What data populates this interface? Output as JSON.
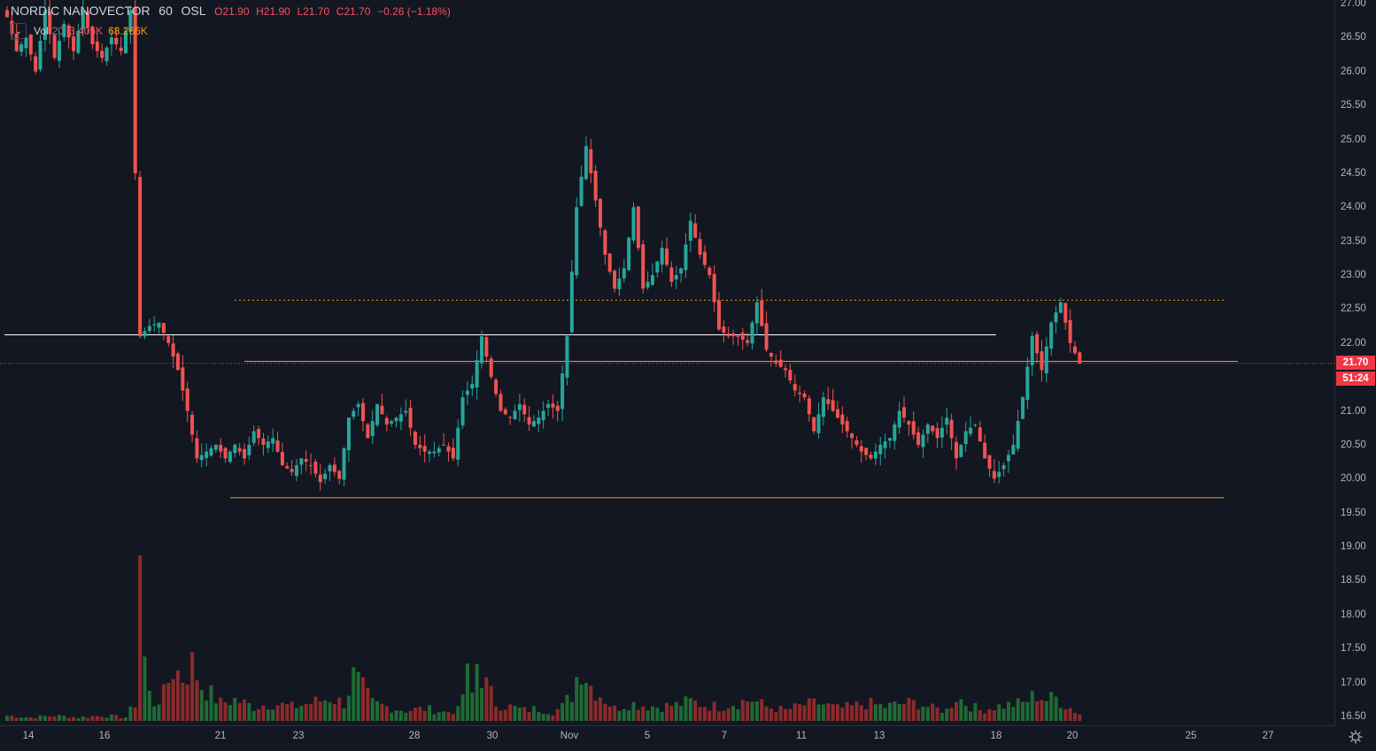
{
  "header": {
    "symbol": "NORDIC NANOVECTOR",
    "interval": "60",
    "exchange": "OSL",
    "open": "O21.90",
    "high": "H21.90",
    "low": "L21.70",
    "close": "C21.70",
    "change": "−0.26 (−1.18%)"
  },
  "volume_legend": {
    "label": "Vol",
    "length": "20",
    "value": "3.405K",
    "ma_value": "68.266K",
    "collapse_icon": "chevron-down-icon"
  },
  "price_tags": {
    "last_price": "21.70",
    "countdown": "51:24"
  },
  "colors": {
    "background": "#131722",
    "up": "#26a69a",
    "down": "#ef5350",
    "volume_up": "#1f6b34",
    "volume_down": "#8c2a2a",
    "orange_line": "#ff9800",
    "white_line": "#ffffff",
    "price_tag": "#f23645"
  },
  "chart_data": {
    "type": "candlestick",
    "price_axis_ticks": [
      "16.50",
      "17.00",
      "17.50",
      "18.00",
      "18.50",
      "19.00",
      "19.50",
      "20.00",
      "20.50",
      "21.00",
      "21.50",
      "22.00",
      "22.50",
      "23.00",
      "23.50",
      "24.00",
      "24.50",
      "25.00",
      "25.50",
      "26.00",
      "26.50",
      "27.00"
    ],
    "time_axis_ticks": [
      "14",
      "16",
      "21",
      "23",
      "28",
      "30",
      "Nov",
      "5",
      "7",
      "11",
      "13",
      "18",
      "20",
      "25",
      "27"
    ],
    "horizontal_lines": [
      {
        "price": 22.12,
        "color": "white",
        "style": "solid"
      },
      {
        "price": 22.63,
        "color": "orange",
        "style": "dotted"
      },
      {
        "price": 21.73,
        "color": "orange",
        "style": "solid"
      },
      {
        "price": 19.72,
        "color": "orange",
        "style": "solid"
      },
      {
        "price": 21.7,
        "color": "red",
        "style": "dotted"
      }
    ],
    "close_path": [
      [
        26.8,
        0
      ],
      [
        26.3,
        2
      ],
      [
        26.5,
        4
      ],
      [
        26.0,
        6
      ],
      [
        26.9,
        8
      ],
      [
        26.2,
        10
      ],
      [
        26.7,
        12
      ],
      [
        26.3,
        14
      ],
      [
        26.9,
        16
      ],
      [
        26.4,
        18
      ],
      [
        26.2,
        20
      ],
      [
        26.5,
        22
      ],
      [
        26.3,
        24
      ],
      [
        26.9,
        26
      ],
      [
        22.1,
        28
      ],
      [
        22.25,
        30
      ],
      [
        22.3,
        32
      ],
      [
        22.0,
        34
      ],
      [
        21.6,
        36
      ],
      [
        21.0,
        38
      ],
      [
        20.3,
        40
      ],
      [
        20.4,
        42
      ],
      [
        20.5,
        44
      ],
      [
        20.3,
        46
      ],
      [
        20.5,
        48
      ],
      [
        20.3,
        50
      ],
      [
        20.7,
        52
      ],
      [
        20.5,
        54
      ],
      [
        20.6,
        56
      ],
      [
        20.2,
        58
      ],
      [
        20.1,
        60
      ],
      [
        20.3,
        62
      ],
      [
        20.2,
        64
      ],
      [
        19.95,
        66
      ],
      [
        20.2,
        68
      ],
      [
        20.0,
        70
      ],
      [
        20.9,
        72
      ],
      [
        21.1,
        74
      ],
      [
        20.6,
        76
      ],
      [
        21.1,
        78
      ],
      [
        20.8,
        80
      ],
      [
        20.9,
        82
      ],
      [
        21.0,
        84
      ],
      [
        20.5,
        86
      ],
      [
        20.4,
        88
      ],
      [
        20.4,
        90
      ],
      [
        20.5,
        92
      ],
      [
        20.3,
        94
      ],
      [
        21.2,
        96
      ],
      [
        21.4,
        98
      ],
      [
        22.1,
        100
      ],
      [
        21.5,
        102
      ],
      [
        21.0,
        104
      ],
      [
        20.9,
        106
      ],
      [
        21.1,
        108
      ],
      [
        20.8,
        110
      ],
      [
        20.9,
        112
      ],
      [
        21.1,
        114
      ],
      [
        21.0,
        116
      ],
      [
        22.1,
        118
      ],
      [
        24.0,
        120
      ],
      [
        24.9,
        122
      ],
      [
        24.1,
        124
      ],
      [
        23.3,
        126
      ],
      [
        22.8,
        128
      ],
      [
        23.1,
        130
      ],
      [
        24.0,
        132
      ],
      [
        22.8,
        134
      ],
      [
        23.0,
        136
      ],
      [
        23.4,
        138
      ],
      [
        22.9,
        140
      ],
      [
        23.1,
        142
      ],
      [
        23.8,
        144
      ],
      [
        23.3,
        146
      ],
      [
        23.0,
        148
      ],
      [
        22.2,
        150
      ],
      [
        22.1,
        152
      ],
      [
        22.1,
        154
      ],
      [
        22.0,
        156
      ],
      [
        22.6,
        158
      ],
      [
        21.9,
        160
      ],
      [
        21.7,
        162
      ],
      [
        21.6,
        164
      ],
      [
        21.3,
        166
      ],
      [
        21.2,
        168
      ],
      [
        20.7,
        170
      ],
      [
        21.2,
        172
      ],
      [
        21.0,
        174
      ],
      [
        20.8,
        176
      ],
      [
        20.6,
        178
      ],
      [
        20.4,
        180
      ],
      [
        20.3,
        182
      ],
      [
        20.5,
        184
      ],
      [
        20.6,
        186
      ],
      [
        21.0,
        188
      ],
      [
        20.8,
        190
      ],
      [
        20.5,
        192
      ],
      [
        20.8,
        194
      ],
      [
        20.6,
        196
      ],
      [
        20.9,
        198
      ],
      [
        20.3,
        200
      ],
      [
        20.7,
        202
      ],
      [
        20.8,
        204
      ],
      [
        20.3,
        206
      ],
      [
        20.0,
        208
      ],
      [
        20.2,
        210
      ],
      [
        20.5,
        212
      ],
      [
        21.2,
        214
      ],
      [
        22.1,
        216
      ],
      [
        21.6,
        218
      ],
      [
        22.3,
        220
      ],
      [
        22.6,
        222
      ],
      [
        22.0,
        224
      ],
      [
        21.7,
        226
      ]
    ],
    "volume_path": [
      [
        0.3,
        0
      ],
      [
        0.2,
        5
      ],
      [
        0.3,
        10
      ],
      [
        0.2,
        15
      ],
      [
        0.3,
        20
      ],
      [
        0.2,
        25
      ],
      [
        1.0,
        27
      ],
      [
        10.0,
        28
      ],
      [
        3.5,
        29
      ],
      [
        1.5,
        30
      ],
      [
        1.0,
        31
      ],
      [
        1.5,
        33
      ],
      [
        3.0,
        35
      ],
      [
        2.5,
        37
      ],
      [
        3.2,
        39
      ],
      [
        2.0,
        41
      ],
      [
        1.5,
        43
      ],
      [
        1.0,
        45
      ],
      [
        1.2,
        48
      ],
      [
        0.8,
        52
      ],
      [
        1.0,
        56
      ],
      [
        0.8,
        60
      ],
      [
        1.0,
        64
      ],
      [
        1.3,
        68
      ],
      [
        1.0,
        71
      ],
      [
        2.5,
        73
      ],
      [
        1.8,
        75
      ],
      [
        1.0,
        77
      ],
      [
        0.8,
        80
      ],
      [
        0.6,
        84
      ],
      [
        0.7,
        88
      ],
      [
        0.5,
        92
      ],
      [
        0.6,
        95
      ],
      [
        2.5,
        97
      ],
      [
        1.5,
        98
      ],
      [
        3.3,
        99
      ],
      [
        2.0,
        101
      ],
      [
        1.0,
        103
      ],
      [
        0.8,
        106
      ],
      [
        0.6,
        109
      ],
      [
        0.7,
        112
      ],
      [
        0.5,
        115
      ],
      [
        0.8,
        117
      ],
      [
        1.5,
        119
      ],
      [
        2.5,
        120
      ],
      [
        3.2,
        121
      ],
      [
        2.0,
        123
      ],
      [
        1.5,
        125
      ],
      [
        0.7,
        128
      ],
      [
        1.0,
        131
      ],
      [
        0.9,
        134
      ],
      [
        0.8,
        137
      ],
      [
        0.9,
        141
      ],
      [
        1.1,
        144
      ],
      [
        0.9,
        147
      ],
      [
        0.8,
        150
      ],
      [
        1.0,
        153
      ],
      [
        1.2,
        157
      ],
      [
        0.8,
        160
      ],
      [
        0.6,
        164
      ],
      [
        0.9,
        168
      ],
      [
        1.0,
        171
      ],
      [
        0.7,
        175
      ],
      [
        0.8,
        178
      ],
      [
        1.0,
        181
      ],
      [
        0.8,
        185
      ],
      [
        1.0,
        189
      ],
      [
        1.0,
        192
      ],
      [
        0.7,
        195
      ],
      [
        0.6,
        198
      ],
      [
        1.4,
        200
      ],
      [
        1.0,
        202
      ],
      [
        0.6,
        205
      ],
      [
        0.8,
        208
      ],
      [
        0.9,
        211
      ],
      [
        1.0,
        214
      ],
      [
        1.5,
        217
      ],
      [
        1.2,
        219
      ],
      [
        1.3,
        221
      ],
      [
        0.9,
        223
      ],
      [
        0.4,
        226
      ]
    ]
  }
}
